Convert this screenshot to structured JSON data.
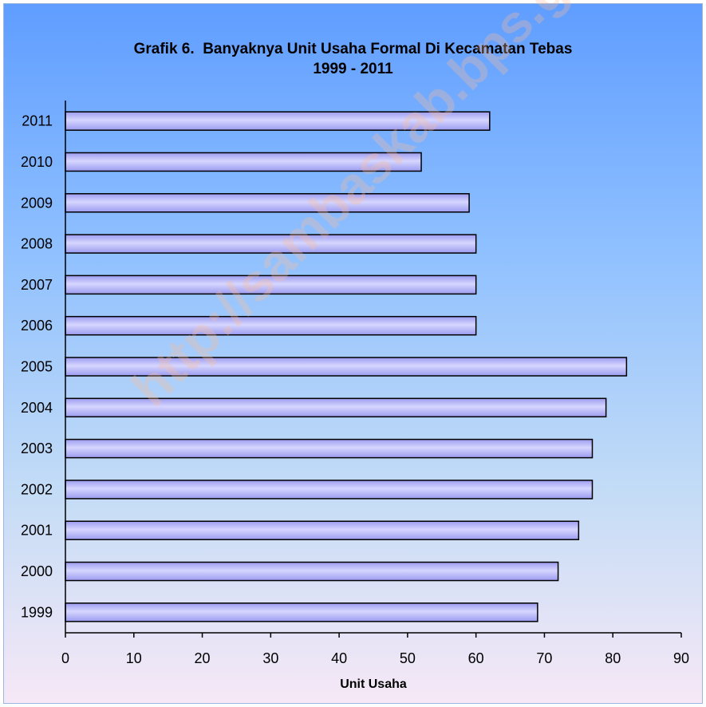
{
  "chart_data": {
    "type": "bar",
    "orientation": "horizontal",
    "title_line1": "Grafik 6.  Banyaknya Unit Usaha Formal Di Kecamatan Tebas",
    "title_line2": "1999 - 2011",
    "xlabel": "Unit Usaha",
    "ylabel": "",
    "categories": [
      "2011",
      "2010",
      "2009",
      "2008",
      "2007",
      "2006",
      "2005",
      "2004",
      "2003",
      "2002",
      "2001",
      "2000",
      "1999"
    ],
    "values": [
      62,
      52,
      59,
      60,
      60,
      60,
      82,
      79,
      77,
      77,
      75,
      72,
      69
    ],
    "xlim": [
      0,
      90
    ],
    "xticks": [
      "0",
      "10",
      "20",
      "30",
      "40",
      "50",
      "60",
      "70",
      "80",
      "90"
    ],
    "grid": false,
    "legend": "none",
    "bar_color": "#9b9bf0",
    "bar_highlight": "#d6d6ff",
    "bar_border": "#000000"
  },
  "watermark": "http://sambaskab.bps.go.id",
  "colors": {
    "background_top": "#5f9dff",
    "background_bottom": "#f6e8f6"
  }
}
